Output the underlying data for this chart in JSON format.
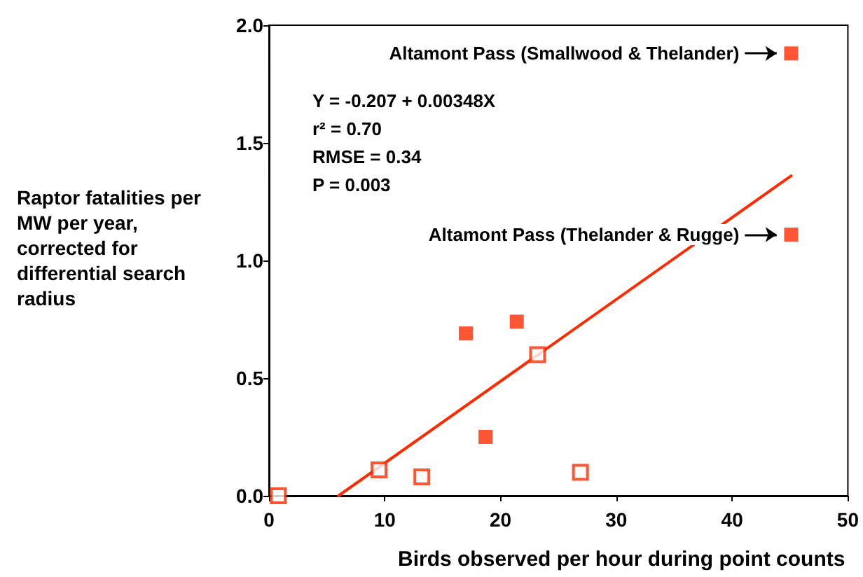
{
  "chart_data": {
    "type": "scatter",
    "xlabel": "Birds observed per hour during point counts",
    "ylabel": "Raptor fatalities per MW per year, corrected for differential search radius",
    "series": [
      {
        "color": "#ff2a00",
        "marker": "square",
        "x": [
          45.1,
          45.1,
          17.0,
          21.4,
          18.7
        ],
        "values": [
          1.88,
          1.11,
          0.69,
          0.74,
          0.25
        ]
      },
      {
        "color": "#ff2a00",
        "marker": "square",
        "x": [
          0.8,
          9.5,
          13.2,
          23.2,
          26.9
        ],
        "values": [
          0.0,
          0.11,
          0.08,
          0.6,
          0.1
        ]
      },
      {
        "type": "line",
        "color": "#ff2a00",
        "marker": "none",
        "line_style": "solid",
        "x": [
          6.0,
          45.1
        ],
        "values": [
          0.0,
          1.36
        ]
      }
    ],
    "annotations": [
      {
        "text": "Altamont Pass (Smallwood & Thelander)",
        "x": 45.1,
        "y": 1.88
      },
      {
        "text": "Altamont Pass (Thelander & Rugge)",
        "x": 45.1,
        "y": 1.11
      },
      "Y = -0.207 + 0.00348X",
      "r² = 0.70",
      "RMSE = 0.34",
      "P = 0.003"
    ],
    "xlim": [
      0,
      50
    ],
    "xticks": [
      0,
      10,
      20,
      30,
      40,
      50
    ],
    "ylim": [
      0,
      2
    ],
    "yticks": [
      {
        "value": 0,
        "label": "0.0"
      },
      {
        "value": 0.5,
        "label": "0.5"
      },
      {
        "value": 1,
        "label": "1.0"
      },
      {
        "value": 1.5,
        "label": "1.5"
      },
      {
        "value": 2,
        "label": "2.0"
      }
    ],
    "grid": false
  }
}
